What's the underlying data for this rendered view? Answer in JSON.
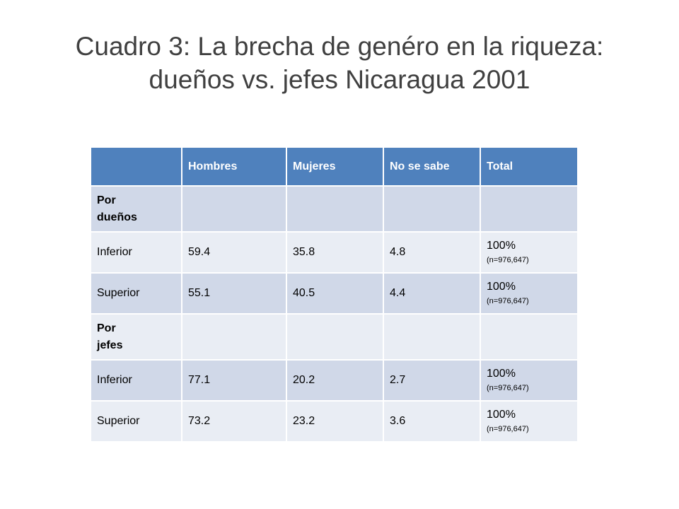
{
  "title": {
    "line1": "Cuadro 3:  La brecha de genéro en la riqueza:",
    "line2": "dueños vs. jefes Nicaragua 2001"
  },
  "table": {
    "headers": [
      "",
      "Hombres",
      "Mujeres",
      "No se sabe",
      "Total"
    ],
    "colors": {
      "header": "#4f81bd",
      "band_dark": "#d0d8e8",
      "band_light": "#e9edf4"
    },
    "sections": [
      {
        "label_line1": "Por",
        "label_line2": "dueños",
        "rows": [
          {
            "label": "Inferior",
            "hombres": "59.4",
            "mujeres": "35.8",
            "no_se_sabe": "4.8",
            "total": "100%",
            "total_n": "(n=976,647)"
          },
          {
            "label": "Superior",
            "hombres": "55.1",
            "mujeres": "40.5",
            "no_se_sabe": "4.4",
            "total": "100%",
            "total_n": "(n=976,647)"
          }
        ]
      },
      {
        "label_line1": "Por",
        "label_line2": "jefes",
        "rows": [
          {
            "label": "Inferior",
            "hombres": "77.1",
            "mujeres": "20.2",
            "no_se_sabe": "2.7",
            "total": "100%",
            "total_n": "(n=976,647)"
          },
          {
            "label": "Superior",
            "hombres": "73.2",
            "mujeres": "23.2",
            "no_se_sabe": "3.6",
            "total": "100%",
            "total_n": "(n=976,647)"
          }
        ]
      }
    ]
  }
}
